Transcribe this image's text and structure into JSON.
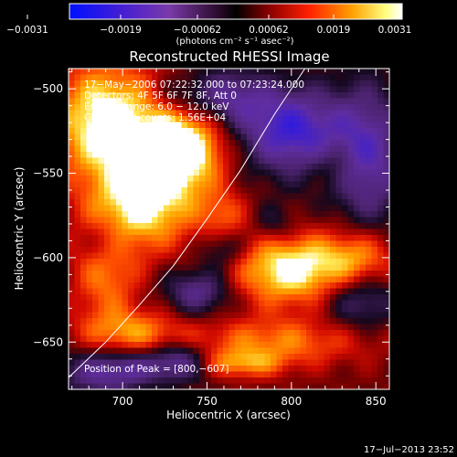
{
  "chart_data": {
    "type": "heatmap",
    "title": "Reconstructed RHESSI Image",
    "xlabel": "Heliocentric X (arcsec)",
    "ylabel": "Heliocentric Y (arcsec)",
    "xlim": [
      668,
      858
    ],
    "ylim": [
      -678,
      -488
    ],
    "x_ticks": [
      700,
      750,
      800,
      850
    ],
    "x_tick_labels": [
      "700",
      "750",
      "800",
      "850"
    ],
    "y_ticks": [
      -650,
      -600,
      -550,
      -500
    ],
    "y_tick_labels": [
      "−650",
      "−600",
      "−550",
      "−500"
    ],
    "colorbar": {
      "min": -0.0031,
      "max": 0.0031,
      "tick_labels": [
        "−0.0031",
        "−0.0019",
        "−0.00062",
        "0.00062",
        "0.0019",
        "0.0031"
      ],
      "units_label": "(photons cm⁻² s⁻¹ asec⁻²)"
    },
    "info_lines": [
      "17−May−2006 07:22:32.000 to 07:23:24.000",
      "Detectors: 4F 5F 6F 7F 8F, Att 0",
      "Energy Range: 6.0 − 12.0 keV",
      "Clean    Total counts: 1.56E+04"
    ],
    "peak_label": "Position of Peak = [800,−607]",
    "peak": {
      "x": 800,
      "y": -607
    },
    "limb_curve": [
      {
        "x": 668,
        "y": -671
      },
      {
        "x": 690,
        "y": -650
      },
      {
        "x": 710,
        "y": -628
      },
      {
        "x": 730,
        "y": -605
      },
      {
        "x": 750,
        "y": -577
      },
      {
        "x": 770,
        "y": -548
      },
      {
        "x": 790,
        "y": -515
      },
      {
        "x": 808,
        "y": -488
      }
    ],
    "blobs": [
      {
        "x": 690,
        "y": -520,
        "sx": 22,
        "sy": 25,
        "a": 0.95
      },
      {
        "x": 735,
        "y": -535,
        "sx": 18,
        "sy": 18,
        "a": 1.05
      },
      {
        "x": 712,
        "y": -570,
        "sx": 22,
        "sy": 18,
        "a": 0.8
      },
      {
        "x": 690,
        "y": -610,
        "sx": 14,
        "sy": 20,
        "a": 0.5
      },
      {
        "x": 705,
        "y": -645,
        "sx": 22,
        "sy": 10,
        "a": 0.55
      },
      {
        "x": 760,
        "y": -575,
        "sx": 10,
        "sy": 10,
        "a": 0.35
      },
      {
        "x": 800,
        "y": -607,
        "sx": 25,
        "sy": 15,
        "a": 0.9
      },
      {
        "x": 840,
        "y": -600,
        "sx": 16,
        "sy": 12,
        "a": 0.5
      },
      {
        "x": 825,
        "y": -545,
        "sx": 10,
        "sy": 10,
        "a": 0.25
      },
      {
        "x": 790,
        "y": -650,
        "sx": 38,
        "sy": 10,
        "a": 0.5
      },
      {
        "x": 770,
        "y": -663,
        "sx": 18,
        "sy": 6,
        "a": 0.5
      },
      {
        "x": 715,
        "y": -675,
        "sx": 16,
        "sy": 7,
        "a": 0.25
      },
      {
        "x": 800,
        "y": -525,
        "sx": 22,
        "sy": 18,
        "a": -0.9
      },
      {
        "x": 760,
        "y": -505,
        "sx": 18,
        "sy": 12,
        "a": -0.6
      },
      {
        "x": 845,
        "y": -540,
        "sx": 16,
        "sy": 30,
        "a": -0.7
      },
      {
        "x": 840,
        "y": -625,
        "sx": 16,
        "sy": 12,
        "a": -0.5
      },
      {
        "x": 700,
        "y": -668,
        "sx": 25,
        "sy": 10,
        "a": -0.8
      },
      {
        "x": 745,
        "y": -620,
        "sx": 14,
        "sy": 10,
        "a": -0.6
      },
      {
        "x": 735,
        "y": -660,
        "sx": 12,
        "sy": 8,
        "a": -0.5
      },
      {
        "x": 760,
        "y": -595,
        "sx": 10,
        "sy": 8,
        "a": -0.4
      },
      {
        "x": 790,
        "y": -580,
        "sx": 10,
        "sy": 8,
        "a": -0.3
      },
      {
        "x": 690,
        "y": -590,
        "sx": 10,
        "sy": 10,
        "a": -0.3
      },
      {
        "x": 730,
        "y": -505,
        "sx": 10,
        "sy": 8,
        "a": -0.25
      }
    ]
  },
  "footer": {
    "timestamp": "17−Jul−2013 23:52"
  }
}
